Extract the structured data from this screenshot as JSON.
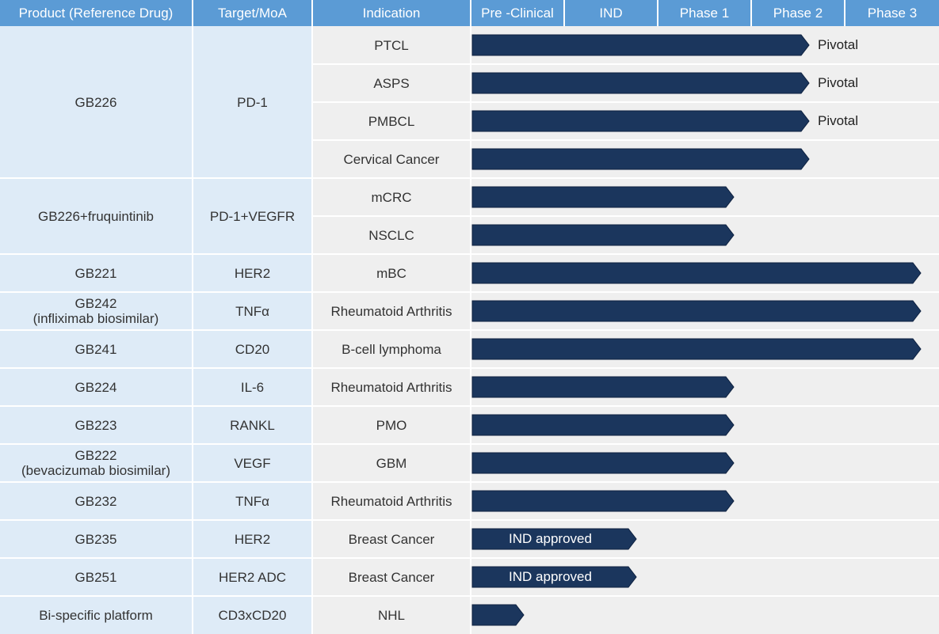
{
  "headers": {
    "product": "Product (Reference Drug)",
    "target": "Target/MoA",
    "indication": "Indication"
  },
  "chart_data": {
    "type": "table",
    "stages": [
      "Pre -Clinical",
      "IND",
      "Phase 1",
      "Phase 2",
      "Phase 3"
    ],
    "colors": {
      "header": "#5b9bd5",
      "bar": "#1b365d",
      "label_col": "#deebf7",
      "lane": "#efefef"
    },
    "programs": [
      {
        "product": [
          "GB226"
        ],
        "target": "PD-1",
        "indications": [
          {
            "name": "PTCL",
            "stage_progress": 3.6,
            "note": "Pivotal"
          },
          {
            "name": "ASPS",
            "stage_progress": 3.6,
            "note": "Pivotal"
          },
          {
            "name": "PMBCL",
            "stage_progress": 3.6,
            "note": "Pivotal"
          },
          {
            "name": "Cervical Cancer",
            "stage_progress": 3.6
          }
        ]
      },
      {
        "product": [
          "GB226+fruquintinib"
        ],
        "target": "PD-1+VEGFR",
        "indications": [
          {
            "name": "mCRC",
            "stage_progress": 2.8
          },
          {
            "name": "NSCLC",
            "stage_progress": 2.8
          }
        ]
      },
      {
        "product": [
          "GB221"
        ],
        "target": "HER2",
        "indications": [
          {
            "name": "mBC",
            "stage_progress": 4.8
          }
        ]
      },
      {
        "product": [
          "GB242",
          "(infliximab biosimilar)"
        ],
        "target": "TNFα",
        "indications": [
          {
            "name": "Rheumatoid Arthritis",
            "stage_progress": 4.8
          }
        ]
      },
      {
        "product": [
          "GB241"
        ],
        "target": "CD20",
        "indications": [
          {
            "name": "B-cell lymphoma",
            "stage_progress": 4.8
          }
        ]
      },
      {
        "product": [
          "GB224"
        ],
        "target": "IL-6",
        "indications": [
          {
            "name": "Rheumatoid Arthritis",
            "stage_progress": 2.8
          }
        ]
      },
      {
        "product": [
          "GB223"
        ],
        "target": "RANKL",
        "indications": [
          {
            "name": "PMO",
            "stage_progress": 2.8
          }
        ]
      },
      {
        "product": [
          "GB222",
          "(bevacizumab biosimilar)"
        ],
        "target": "VEGF",
        "indications": [
          {
            "name": "GBM",
            "stage_progress": 2.8
          }
        ]
      },
      {
        "product": [
          "GB232"
        ],
        "target": "TNFα",
        "indications": [
          {
            "name": "Rheumatoid Arthritis",
            "stage_progress": 2.8
          }
        ]
      },
      {
        "product": [
          "GB235"
        ],
        "target": "HER2",
        "indications": [
          {
            "name": "Breast Cancer",
            "stage_progress": 1.75,
            "bar_label": "IND approved"
          }
        ]
      },
      {
        "product": [
          "GB251"
        ],
        "target": "HER2 ADC",
        "indications": [
          {
            "name": "Breast Cancer",
            "stage_progress": 1.75,
            "bar_label": "IND approved"
          }
        ]
      },
      {
        "product": [
          "Bi-specific platform"
        ],
        "target": "CD3xCD20",
        "indications": [
          {
            "name": "NHL",
            "stage_progress": 0.55
          }
        ]
      }
    ]
  }
}
